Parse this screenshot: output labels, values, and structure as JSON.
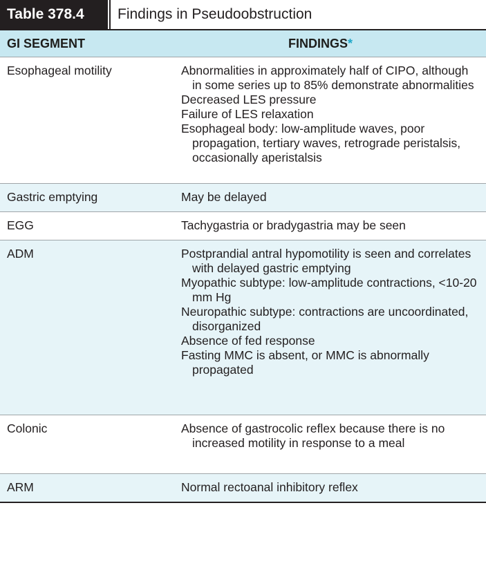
{
  "table": {
    "number": "Table 378.4",
    "title": "Findings in Pseudoobstruction",
    "header": {
      "segment": "GI SEGMENT",
      "findings": "FINDINGS",
      "asterisk": "*"
    },
    "rows": [
      {
        "segment": "Esophageal motility",
        "findings": [
          "Abnormalities in approximately half of CIPO, although in some series up to 85% demonstrate abnormalities",
          "Decreased LES pressure",
          "Failure of LES relaxation",
          "Esophageal body: low-amplitude waves, poor propagation, tertiary waves, retrograde peristalsis, occasionally aperistalsis"
        ]
      },
      {
        "segment": "Gastric emptying",
        "findings": [
          "May be delayed"
        ]
      },
      {
        "segment": "EGG",
        "findings": [
          "Tachygastria or bradygastria may be seen"
        ]
      },
      {
        "segment": "ADM",
        "findings": [
          "Postprandial antral hypomotility is seen and correlates with delayed gastric emptying",
          "Myopathic subtype: low-amplitude contractions, <10-20 mm Hg",
          "Neuropathic subtype: contractions are uncoordinated, disorganized",
          "Absence of fed response",
          "Fasting MMC is absent, or MMC is abnormally propagated"
        ]
      },
      {
        "segment": "Colonic",
        "findings": [
          "Absence of gastrocolic reflex because there is no increased motility in response to a meal"
        ]
      },
      {
        "segment": "ARM",
        "findings": [
          "Normal rectoanal inhibitory reflex"
        ]
      }
    ]
  }
}
